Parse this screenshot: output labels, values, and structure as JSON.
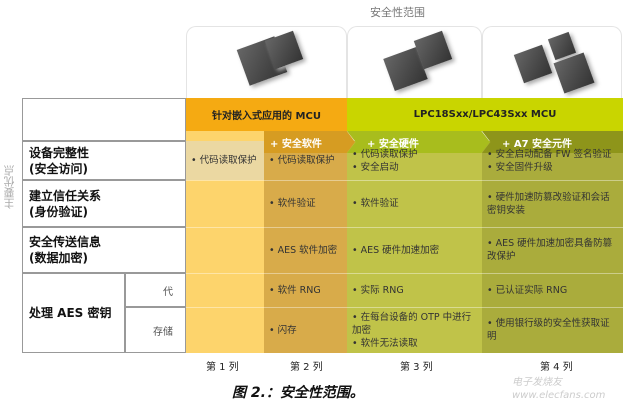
{
  "title": "安全性范围",
  "side_label": "主要优点",
  "header": {
    "mcu_embedded": "针对嵌入式应用的 MCU",
    "mcu_lpc": "LPC18Sxx/LPC43Sxx MCU"
  },
  "subheader": [
    "+ 安全软件",
    "+ 安全硬件",
    "+ A7 安全元件"
  ],
  "rows": [
    {
      "label": [
        "设备完整性",
        "(安全访问)"
      ],
      "cells": [
        [
          "代码读取保护"
        ],
        [
          "代码读取保护"
        ],
        [
          "代码读取保护",
          "安全启动"
        ],
        [
          "安全启动配备 FW 签名验证",
          "安全固件升级"
        ]
      ]
    },
    {
      "label": [
        "建立信任关系",
        "(身份验证)"
      ],
      "cells": [
        [],
        [
          "软件验证"
        ],
        [
          "软件验证"
        ],
        [
          "硬件加速防篡改验证和会话密钥安装"
        ]
      ]
    },
    {
      "label": [
        "安全传送信息",
        "(数据加密)"
      ],
      "cells": [
        [],
        [
          "AES 软件加密"
        ],
        [
          "AES 硬件加速加密"
        ],
        [
          "AES 硬件加速加密具备防篡改保护"
        ]
      ]
    }
  ],
  "aes_row": {
    "label": "处理 AES 密钥",
    "sub": [
      {
        "label": "代",
        "cells": [
          [],
          [
            "软件 RNG"
          ],
          [
            "实际 RNG"
          ],
          [
            "已认证实际 RNG"
          ]
        ]
      },
      {
        "label": "存储",
        "cells": [
          [],
          [
            "闪存"
          ],
          [
            "在每台设备的 OTP 中进行加密",
            "软件无法读取"
          ],
          [
            "使用银行级的安全性获取证明"
          ]
        ]
      }
    ]
  },
  "columns": [
    "第 1 列",
    "第 2 列",
    "第 3 列",
    "第 4 列"
  ],
  "caption": "图 2.：安全性范围。",
  "watermark": "电子发烧友 www.elecfans.com",
  "colors": {
    "col1": "#fdd46c",
    "col1_first": "#ebd8a2",
    "col2": "#d8ab4a",
    "col3": "#c0c349",
    "col4": "#aaac3c",
    "orange": "#f5aa12",
    "green": "#c9d500"
  }
}
